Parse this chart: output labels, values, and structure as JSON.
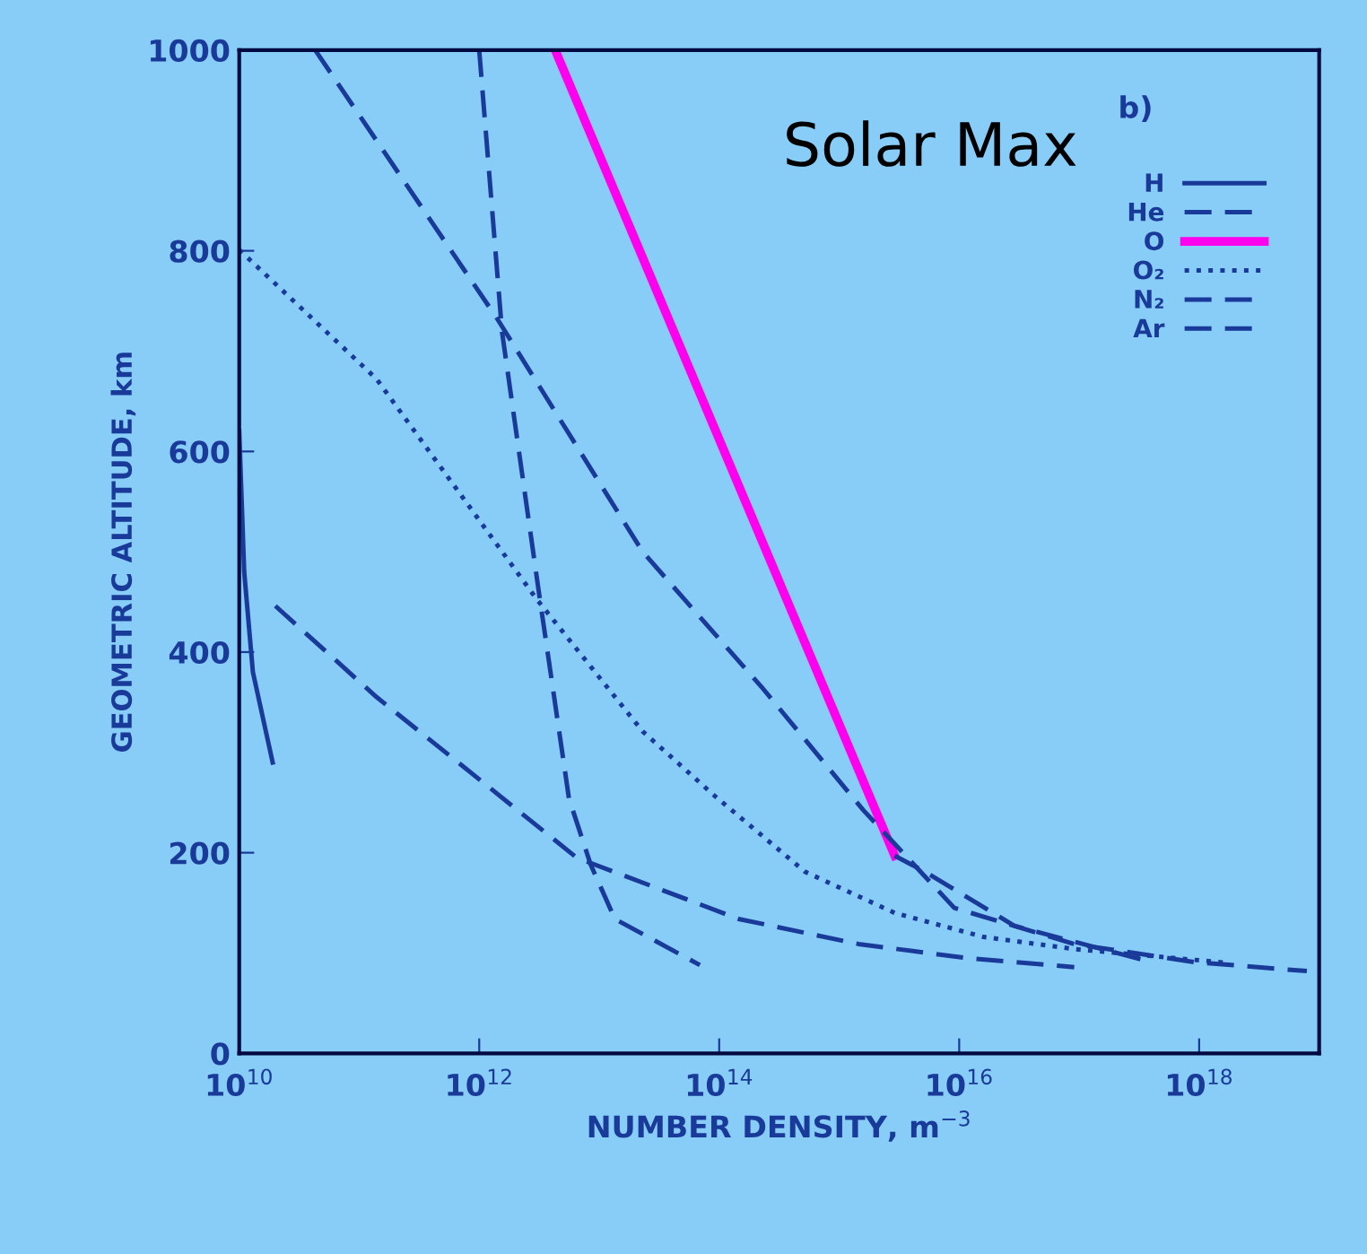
{
  "chart_data": {
    "type": "line",
    "xlabel": "NUMBER DENSITY, m$^{−3}$",
    "ylabel": "GEOMETRIC ALTITUDE, km",
    "annotations": [
      "Solar Max",
      "b)"
    ],
    "log": "x",
    "xlim": [
      10000000000.0,
      1e+19
    ],
    "ylim": [
      0,
      1000
    ],
    "xticks": [
      {
        "value": 10000000000.0,
        "label": "10$^{10}$"
      },
      {
        "value": 1000000000000.0,
        "label": "10$^{12}$"
      },
      {
        "value": 100000000000000.0,
        "label": "10$^{14}$"
      },
      {
        "value": 1e+16,
        "label": "10$^{16}$"
      },
      {
        "value": 1e+18,
        "label": "10$^{18}$"
      }
    ],
    "yticks": [
      0,
      200,
      400,
      600,
      800,
      1000
    ],
    "grid": false,
    "legend": "top right",
    "series": [
      {
        "name": "H",
        "color": "#1a3a9a",
        "line_style": "solid",
        "x": [
          10000000000.0,
          11000000000.0,
          13000000000.0,
          19000000000.0
        ],
        "values": [
          620,
          480,
          380,
          290
        ]
      },
      {
        "name": "He",
        "color": "#1a3a9a",
        "line_style": "dashed",
        "x": [
          1000000000000.0,
          1550000000000.0,
          3200000000000.0,
          5600000000000.0,
          8500000000000.0,
          13500000000000.0,
          69000000000000.0
        ],
        "values": [
          1000,
          719,
          453,
          254,
          188,
          134,
          88
        ]
      },
      {
        "name": "O",
        "color": "#ff00ee",
        "line_style": "solid",
        "x": [
          4300000000000.0,
          2900000000000000.0
        ],
        "values": [
          1000,
          197
        ]
      },
      {
        "color": "#1a3a9a",
        "line_style": "dashed",
        "x": [
          2900000000000000.0,
          5200000000000000.0,
          2.9e+16,
          4e+17
        ],
        "values": [
          197,
          181,
          127,
          91
        ]
      },
      {
        "name": "O₂",
        "color": "#1a3a9a",
        "line_style": "dotted",
        "x": [
          10000000000.0,
          140000000000.0,
          3000000000000.0,
          23000000000000.0,
          93000000000000.0,
          520000000000000.0,
          2900000000000000.0,
          1.6e+16,
          9.1e+16,
          1.8e+18
        ],
        "values": [
          801,
          672,
          453,
          321,
          256,
          181,
          140,
          116,
          104,
          90
        ]
      },
      {
        "name": "N₂",
        "color": "#1a3a9a",
        "line_style": "dashed",
        "x": [
          43000000000.0,
          1400000000000.0,
          23000000000000.0,
          230000000000000.0,
          1600000000000000.0,
          9100000000000000.0,
          9.1e+16,
          9.1e+17,
          7.9e+18
        ],
        "values": [
          1000,
          733,
          500,
          364,
          242,
          145,
          109,
          91,
          82
        ]
      },
      {
        "name": "Ar",
        "color": "#1a3a9a",
        "line_style": "dashed",
        "x": [
          20000000000.0,
          140000000000.0,
          980000000000.0,
          6500000000000.0,
          145000000000000.0,
          1450000000000000.0,
          1.15e+16,
          9.1e+16
        ],
        "values": [
          446,
          355,
          274,
          195,
          134,
          109,
          95,
          86
        ]
      }
    ]
  }
}
